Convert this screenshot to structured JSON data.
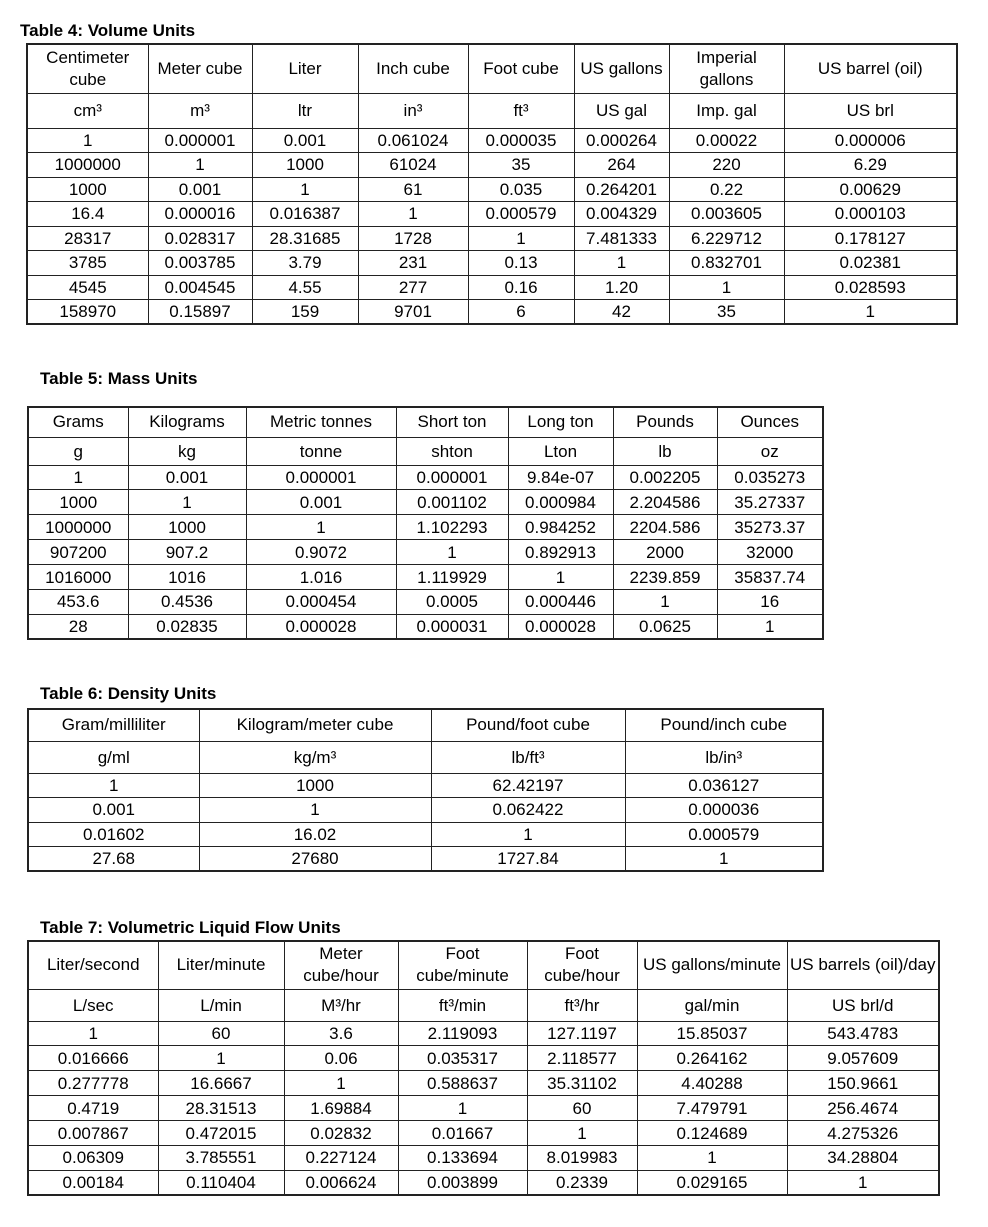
{
  "tables": [
    {
      "title": "Table 4:  Volume Units",
      "headers": [
        "Centimeter cube",
        "Meter cube",
        "Liter",
        "Inch cube",
        "Foot cube",
        "US gallons",
        "Imperial gallons",
        "US barrel (oil)"
      ],
      "units": [
        "cm³",
        "m³",
        "ltr",
        "in³",
        "ft³",
        "US gal",
        "Imp. gal",
        "US brl"
      ],
      "rows": [
        [
          "1",
          "0.000001",
          "0.001",
          "0.061024",
          "0.000035",
          "0.000264",
          "0.00022",
          "0.000006"
        ],
        [
          "1000000",
          "1",
          "1000",
          "61024",
          "35",
          "264",
          "220",
          "6.29"
        ],
        [
          "1000",
          "0.001",
          "1",
          "61",
          "0.035",
          "0.264201",
          "0.22",
          "0.00629"
        ],
        [
          "16.4",
          "0.000016",
          "0.016387",
          "1",
          "0.000579",
          "0.004329",
          "0.003605",
          "0.000103"
        ],
        [
          "28317",
          "0.028317",
          "28.31685",
          "1728",
          "1",
          "7.481333",
          "6.229712",
          "0.178127"
        ],
        [
          "3785",
          "0.003785",
          "3.79",
          "231",
          "0.13",
          "1",
          "0.832701",
          "0.02381"
        ],
        [
          "4545",
          "0.004545",
          "4.55",
          "277",
          "0.16",
          "1.20",
          "1",
          "0.028593"
        ],
        [
          "158970",
          "0.15897",
          "159",
          "9701",
          "6",
          "42",
          "35",
          "1"
        ]
      ]
    },
    {
      "title": "Table 5:  Mass Units",
      "headers": [
        "Grams",
        "Kilograms",
        "Metric tonnes",
        "Short ton",
        "Long ton",
        "Pounds",
        "Ounces"
      ],
      "units": [
        "g",
        "kg",
        "tonne",
        "shton",
        "Lton",
        "lb",
        "oz"
      ],
      "rows": [
        [
          "1",
          "0.001",
          "0.000001",
          "0.000001",
          "9.84e-07",
          "0.002205",
          "0.035273"
        ],
        [
          "1000",
          "1",
          "0.001",
          "0.001102",
          "0.000984",
          "2.204586",
          "35.27337"
        ],
        [
          "1000000",
          "1000",
          "1",
          "1.102293",
          "0.984252",
          "2204.586",
          "35273.37"
        ],
        [
          "907200",
          "907.2",
          "0.9072",
          "1",
          "0.892913",
          "2000",
          "32000"
        ],
        [
          "1016000",
          "1016",
          "1.016",
          "1.119929",
          "1",
          "2239.859",
          "35837.74"
        ],
        [
          "453.6",
          "0.4536",
          "0.000454",
          "0.0005",
          "0.000446",
          "1",
          "16"
        ],
        [
          "28",
          "0.02835",
          "0.000028",
          "0.000031",
          "0.000028",
          "0.0625",
          "1"
        ]
      ]
    },
    {
      "title": "Table 6:  Density Units",
      "headers": [
        "Gram/milliliter",
        "Kilogram/meter cube",
        "Pound/foot cube",
        "Pound/inch cube"
      ],
      "units": [
        "g/ml",
        "kg/m³",
        "lb/ft³",
        "lb/in³"
      ],
      "rows": [
        [
          "1",
          "1000",
          "62.42197",
          "0.036127"
        ],
        [
          "0.001",
          "1",
          "0.062422",
          "0.000036"
        ],
        [
          "0.01602",
          "16.02",
          "1",
          "0.000579"
        ],
        [
          "27.68",
          "27680",
          "1727.84",
          "1"
        ]
      ]
    },
    {
      "title": "Table 7:  Volumetric Liquid Flow Units",
      "headers": [
        "Liter/second",
        "Liter/minute",
        "Meter cube/hour",
        "Foot cube/minute",
        "Foot cube/hour",
        "US gallons/minute",
        "US barrels (oil)/day"
      ],
      "units": [
        "L/sec",
        "L/min",
        "M³/hr",
        "ft³/min",
        "ft³/hr",
        "gal/min",
        "US brl/d"
      ],
      "rows": [
        [
          "1",
          "60",
          "3.6",
          "2.119093",
          "127.1197",
          "15.85037",
          "543.4783"
        ],
        [
          "0.016666",
          "1",
          "0.06",
          "0.035317",
          "2.118577",
          "0.264162",
          "9.057609"
        ],
        [
          "0.277778",
          "16.6667",
          "1",
          "0.588637",
          "35.31102",
          "4.40288",
          "150.9661"
        ],
        [
          "0.4719",
          "28.31513",
          "1.69884",
          "1",
          "60",
          "7.479791",
          "256.4674"
        ],
        [
          "0.007867",
          "0.472015",
          "0.02832",
          "0.01667",
          "1",
          "0.124689",
          "4.275326"
        ],
        [
          "0.06309",
          "3.785551",
          "0.227124",
          "0.133694",
          "8.019983",
          "1",
          "34.28804"
        ],
        [
          "0.00184",
          "0.110404",
          "0.006624",
          "0.003899",
          "0.2339",
          "0.029165",
          "1"
        ]
      ]
    }
  ]
}
